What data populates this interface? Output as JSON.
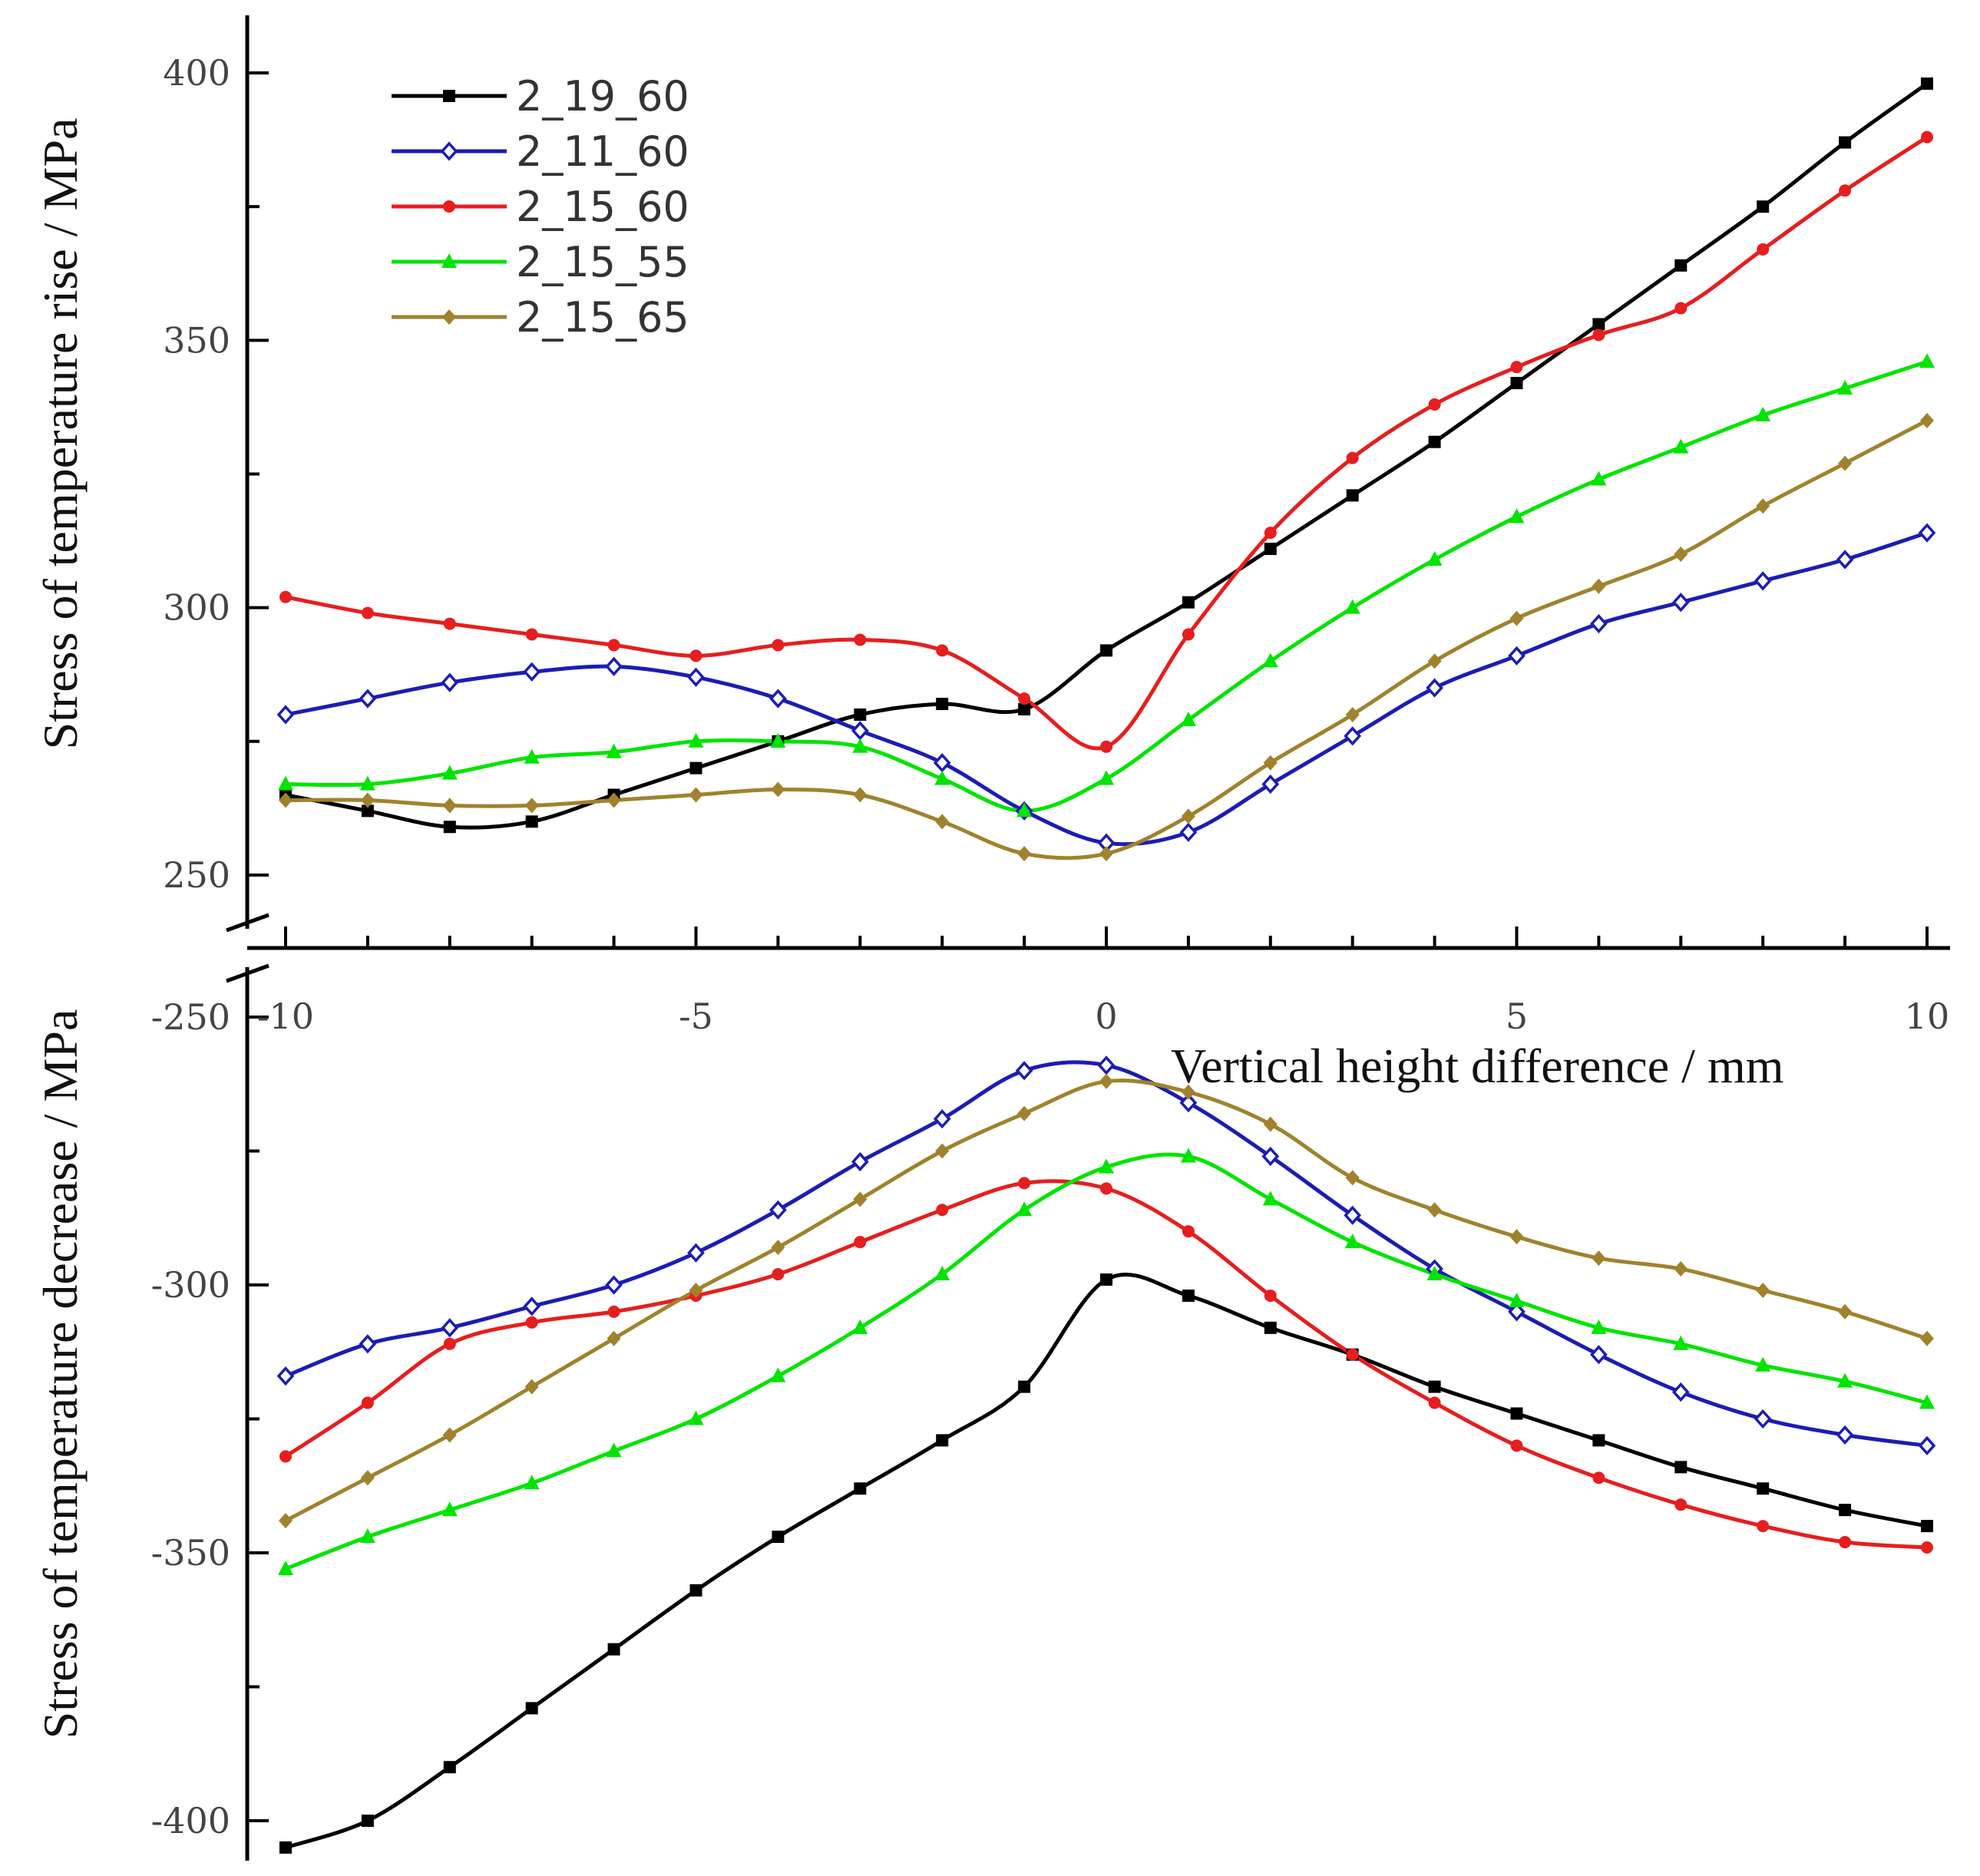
{
  "chart_data": {
    "type": "line",
    "layout": "broken-y-axis",
    "x": [
      -10,
      -9,
      -8,
      -7,
      -6,
      -5,
      -4,
      -3,
      -2,
      -1,
      0,
      1,
      2,
      3,
      4,
      5,
      6,
      7,
      8,
      9,
      10
    ],
    "xlabel": "Vertical height difference / mm",
    "xlim": [
      -10,
      10
    ],
    "xticks": [
      "-10",
      "-5",
      "0",
      "5",
      "10"
    ],
    "panels": [
      {
        "name": "rise",
        "ylabel": "Stress of temperature rise / MPa",
        "ylim": [
          237,
          411
        ],
        "yticks": [
          "250",
          "300",
          "350",
          "400"
        ],
        "series": [
          {
            "name": "2_19_60",
            "color": "#000000",
            "marker": "square",
            "values": [
              265,
              262,
              259,
              260,
              265,
              270,
              275,
              280,
              282,
              281,
              292,
              301,
              311,
              321,
              331,
              342,
              353,
              364,
              375,
              387,
              398
            ]
          },
          {
            "name": "2_11_60",
            "color": "#1c1cb4",
            "marker": "diamond-open",
            "values": [
              280,
              283,
              286,
              288,
              289,
              287,
              283,
              277,
              271,
              262,
              256,
              258,
              267,
              276,
              285,
              291,
              297,
              301,
              305,
              309,
              314
            ]
          },
          {
            "name": "2_15_60",
            "color": "#e61e1e",
            "marker": "dot",
            "values": [
              302,
              299,
              297,
              295,
              293,
              291,
              293,
              294,
              292,
              283,
              274,
              295,
              314,
              328,
              338,
              345,
              351,
              356,
              367,
              378,
              388
            ]
          },
          {
            "name": "2_15_55",
            "color": "#00e400",
            "marker": "triangle",
            "values": [
              267,
              267,
              269,
              272,
              273,
              275,
              275,
              274,
              268,
              262,
              268,
              279,
              290,
              300,
              309,
              317,
              324,
              330,
              336,
              341,
              346
            ]
          },
          {
            "name": "2_15_65",
            "color": "#a0822d",
            "marker": "diamond",
            "values": [
              264,
              264,
              263,
              263,
              264,
              265,
              266,
              265,
              260,
              254,
              254,
              261,
              271,
              280,
              290,
              298,
              304,
              310,
              319,
              327,
              335
            ]
          }
        ]
      },
      {
        "name": "decrease",
        "ylabel": "Stress of temperature decrease / MPa",
        "ylim": [
          -411,
          -248
        ],
        "yticks": [
          "-250",
          "-300",
          "-350",
          "-400"
        ],
        "series": [
          {
            "name": "2_19_60",
            "color": "#000000",
            "marker": "square",
            "values": [
              -405,
              -400,
              -390,
              -379,
              -368,
              -357,
              -347,
              -338,
              -329,
              -319,
              -299,
              -302,
              -308,
              -313,
              -319,
              -324,
              -329,
              -334,
              -338,
              -342,
              -345
            ]
          },
          {
            "name": "2_11_60",
            "color": "#1c1cb4",
            "marker": "diamond-open",
            "values": [
              -317,
              -311,
              -308,
              -304,
              -300,
              -294,
              -286,
              -277,
              -269,
              -260,
              -259,
              -266,
              -276,
              -287,
              -297,
              -305,
              -313,
              -320,
              -325,
              -328,
              -330
            ]
          },
          {
            "name": "2_15_60",
            "color": "#e61e1e",
            "marker": "dot",
            "values": [
              -332,
              -322,
              -311,
              -307,
              -305,
              -302,
              -298,
              -292,
              -286,
              -281,
              -282,
              -290,
              -302,
              -313,
              -322,
              -330,
              -336,
              -341,
              -345,
              -348,
              -349
            ]
          },
          {
            "name": "2_15_55",
            "color": "#00e400",
            "marker": "triangle",
            "values": [
              -353,
              -347,
              -342,
              -337,
              -331,
              -325,
              -317,
              -308,
              -298,
              -286,
              -278,
              -276,
              -284,
              -292,
              -298,
              -303,
              -308,
              -311,
              -315,
              -318,
              -322
            ]
          },
          {
            "name": "2_15_65",
            "color": "#a0822d",
            "marker": "diamond",
            "values": [
              -344,
              -336,
              -328,
              -319,
              -310,
              -301,
              -293,
              -284,
              -275,
              -268,
              -262,
              -264,
              -270,
              -280,
              -286,
              -291,
              -295,
              -297,
              -301,
              -305,
              -310
            ]
          }
        ]
      }
    ],
    "legend_position": "top-left"
  }
}
